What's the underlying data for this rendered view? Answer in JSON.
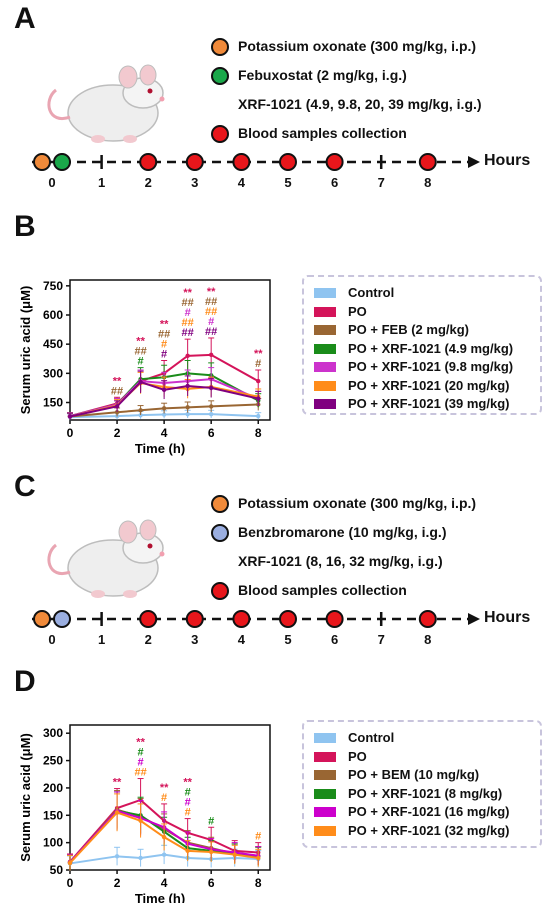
{
  "panels": {
    "A": {
      "label": "A",
      "legend": [
        {
          "text": "Potassium oxonate (300 mg/kg, i.p.)",
          "dot": "#f08a3a"
        },
        {
          "text": "Febuxostat (2 mg/kg, i.g.)",
          "dot": "#1aa84a"
        },
        {
          "text": "XRF-1021 (4.9, 9.8, 20, 39 mg/kg, i.g.)",
          "dot": ""
        },
        {
          "text": "Blood samples collection",
          "dot": "#e8161b"
        }
      ],
      "timeline_ticks": [
        "0",
        "1",
        "2",
        "3",
        "4",
        "5",
        "6",
        "7",
        "8"
      ],
      "axis_end_label": "Hours"
    },
    "C": {
      "label": "C",
      "legend": [
        {
          "text": "Potassium oxonate (300 mg/kg, i.p.)",
          "dot": "#f08a3a"
        },
        {
          "text": "Benzbromarone (10 mg/kg, i.g.)",
          "dot": "#9aaee0"
        },
        {
          "text": "XRF-1021 (8, 16, 32 mg/kg, i.g.)",
          "dot": ""
        },
        {
          "text": "Blood samples collection",
          "dot": "#e8161b"
        }
      ],
      "timeline_ticks": [
        "0",
        "1",
        "2",
        "3",
        "4",
        "5",
        "6",
        "7",
        "8"
      ],
      "axis_end_label": "Hours"
    }
  },
  "chart_data": [
    {
      "panel": "B",
      "type": "line",
      "xlabel": "Time (h)",
      "ylabel": "Serum uric acid (μM)",
      "xlim": [
        0,
        8.5
      ],
      "ylim": [
        60,
        780
      ],
      "xticks": [
        0,
        2,
        4,
        6,
        8
      ],
      "yticks": [
        150,
        300,
        450,
        600,
        750
      ],
      "x": [
        0,
        2,
        3,
        4,
        5,
        6,
        8
      ],
      "series": [
        {
          "name": "Control",
          "color": "#8fc4f0",
          "values": [
            75,
            80,
            85,
            88,
            90,
            90,
            80
          ]
        },
        {
          "name": "PO",
          "color": "#d4145a",
          "values": [
            80,
            145,
            260,
            300,
            390,
            395,
            260
          ]
        },
        {
          "name": "PO + FEB (2 mg/kg)",
          "color": "#996633",
          "values": [
            78,
            100,
            110,
            120,
            125,
            130,
            140
          ]
        },
        {
          "name": "PO + XRF-1021 (4.9 mg/kg)",
          "color": "#1a8c1a",
          "values": [
            80,
            140,
            270,
            280,
            300,
            290,
            160
          ]
        },
        {
          "name": "PO + XRF-1021 (9.8 mg/kg)",
          "color": "#cc33cc",
          "values": [
            80,
            140,
            260,
            250,
            260,
            270,
            170
          ]
        },
        {
          "name": "PO + XRF-1021 (20 mg/kg)",
          "color": "#ff8c1a",
          "values": [
            78,
            135,
            250,
            230,
            220,
            230,
            180
          ]
        },
        {
          "name": "PO + XRF-1021 (39 mg/kg)",
          "color": "#800080",
          "values": [
            78,
            130,
            255,
            215,
            235,
            225,
            170
          ]
        }
      ],
      "annotations": [
        {
          "x": 2,
          "lines": [
            {
              "t": "**",
              "c": "#d4145a"
            },
            {
              "t": "##",
              "c": "#996633"
            }
          ]
        },
        {
          "x": 3,
          "lines": [
            {
              "t": "**",
              "c": "#d4145a"
            },
            {
              "t": "##",
              "c": "#996633"
            },
            {
              "t": "#",
              "c": "#1a8c1a"
            }
          ]
        },
        {
          "x": 4,
          "lines": [
            {
              "t": "**",
              "c": "#d4145a"
            },
            {
              "t": "##",
              "c": "#996633"
            },
            {
              "t": "#",
              "c": "#ff8c1a"
            },
            {
              "t": "#",
              "c": "#800080"
            }
          ]
        },
        {
          "x": 5,
          "lines": [
            {
              "t": "**",
              "c": "#d4145a"
            },
            {
              "t": "##",
              "c": "#996633"
            },
            {
              "t": "#",
              "c": "#cc33cc"
            },
            {
              "t": "##",
              "c": "#ff8c1a"
            },
            {
              "t": "##",
              "c": "#800080"
            }
          ]
        },
        {
          "x": 6,
          "lines": [
            {
              "t": "**",
              "c": "#d4145a"
            },
            {
              "t": "##",
              "c": "#996633"
            },
            {
              "t": "##",
              "c": "#ff8c1a"
            },
            {
              "t": "#",
              "c": "#cc33cc"
            },
            {
              "t": "##",
              "c": "#800080"
            }
          ]
        },
        {
          "x": 8,
          "lines": [
            {
              "t": "**",
              "c": "#d4145a"
            },
            {
              "t": "#",
              "c": "#996633"
            }
          ]
        }
      ]
    },
    {
      "panel": "D",
      "type": "line",
      "xlabel": "Time (h)",
      "ylabel": "Serum uric acid (μM)",
      "xlim": [
        0,
        8.5
      ],
      "ylim": [
        50,
        315
      ],
      "xticks": [
        0,
        2,
        4,
        6,
        8
      ],
      "yticks": [
        50,
        100,
        150,
        200,
        250,
        300
      ],
      "x": [
        0,
        2,
        3,
        4,
        5,
        6,
        7,
        8
      ],
      "series": [
        {
          "name": "Control",
          "color": "#8fc4f0",
          "values": [
            62,
            75,
            72,
            78,
            72,
            70,
            72,
            70
          ]
        },
        {
          "name": "PO",
          "color": "#d4145a",
          "values": [
            65,
            163,
            178,
            140,
            118,
            105,
            85,
            82
          ]
        },
        {
          "name": "PO + BEM (10 mg/kg)",
          "color": "#996633",
          "values": [
            63,
            160,
            148,
            125,
            100,
            90,
            80,
            76
          ]
        },
        {
          "name": "PO + XRF-1021 (8 mg/kg)",
          "color": "#1a8c1a",
          "values": [
            64,
            158,
            150,
            120,
            90,
            85,
            80,
            75
          ]
        },
        {
          "name": "PO + XRF-1021 (16 mg/kg)",
          "color": "#cc00cc",
          "values": [
            64,
            158,
            145,
            128,
            98,
            88,
            82,
            76
          ]
        },
        {
          "name": "PO + XRF-1021 (32 mg/kg)",
          "color": "#ff8c1a",
          "values": [
            63,
            155,
            140,
            110,
            85,
            83,
            78,
            72
          ]
        }
      ],
      "annotations": [
        {
          "x": 2,
          "lines": [
            {
              "t": "**",
              "c": "#d4145a"
            }
          ]
        },
        {
          "x": 3,
          "lines": [
            {
              "t": "**",
              "c": "#d4145a"
            },
            {
              "t": "#",
              "c": "#1a8c1a"
            },
            {
              "t": "#",
              "c": "#cc00cc"
            },
            {
              "t": "##",
              "c": "#ff8c1a"
            }
          ]
        },
        {
          "x": 4,
          "lines": [
            {
              "t": "**",
              "c": "#d4145a"
            },
            {
              "t": "#",
              "c": "#ff8c1a"
            }
          ]
        },
        {
          "x": 5,
          "lines": [
            {
              "t": "**",
              "c": "#d4145a"
            },
            {
              "t": "#",
              "c": "#1a8c1a"
            },
            {
              "t": "#",
              "c": "#cc00cc"
            },
            {
              "t": "#",
              "c": "#ff8c1a"
            }
          ]
        },
        {
          "x": 6,
          "lines": [
            {
              "t": "#",
              "c": "#1a8c1a"
            }
          ]
        },
        {
          "x": 8,
          "lines": [
            {
              "t": "#",
              "c": "#ff8c1a"
            }
          ]
        }
      ]
    }
  ],
  "panel_labels": {
    "B": "B",
    "D": "D"
  }
}
